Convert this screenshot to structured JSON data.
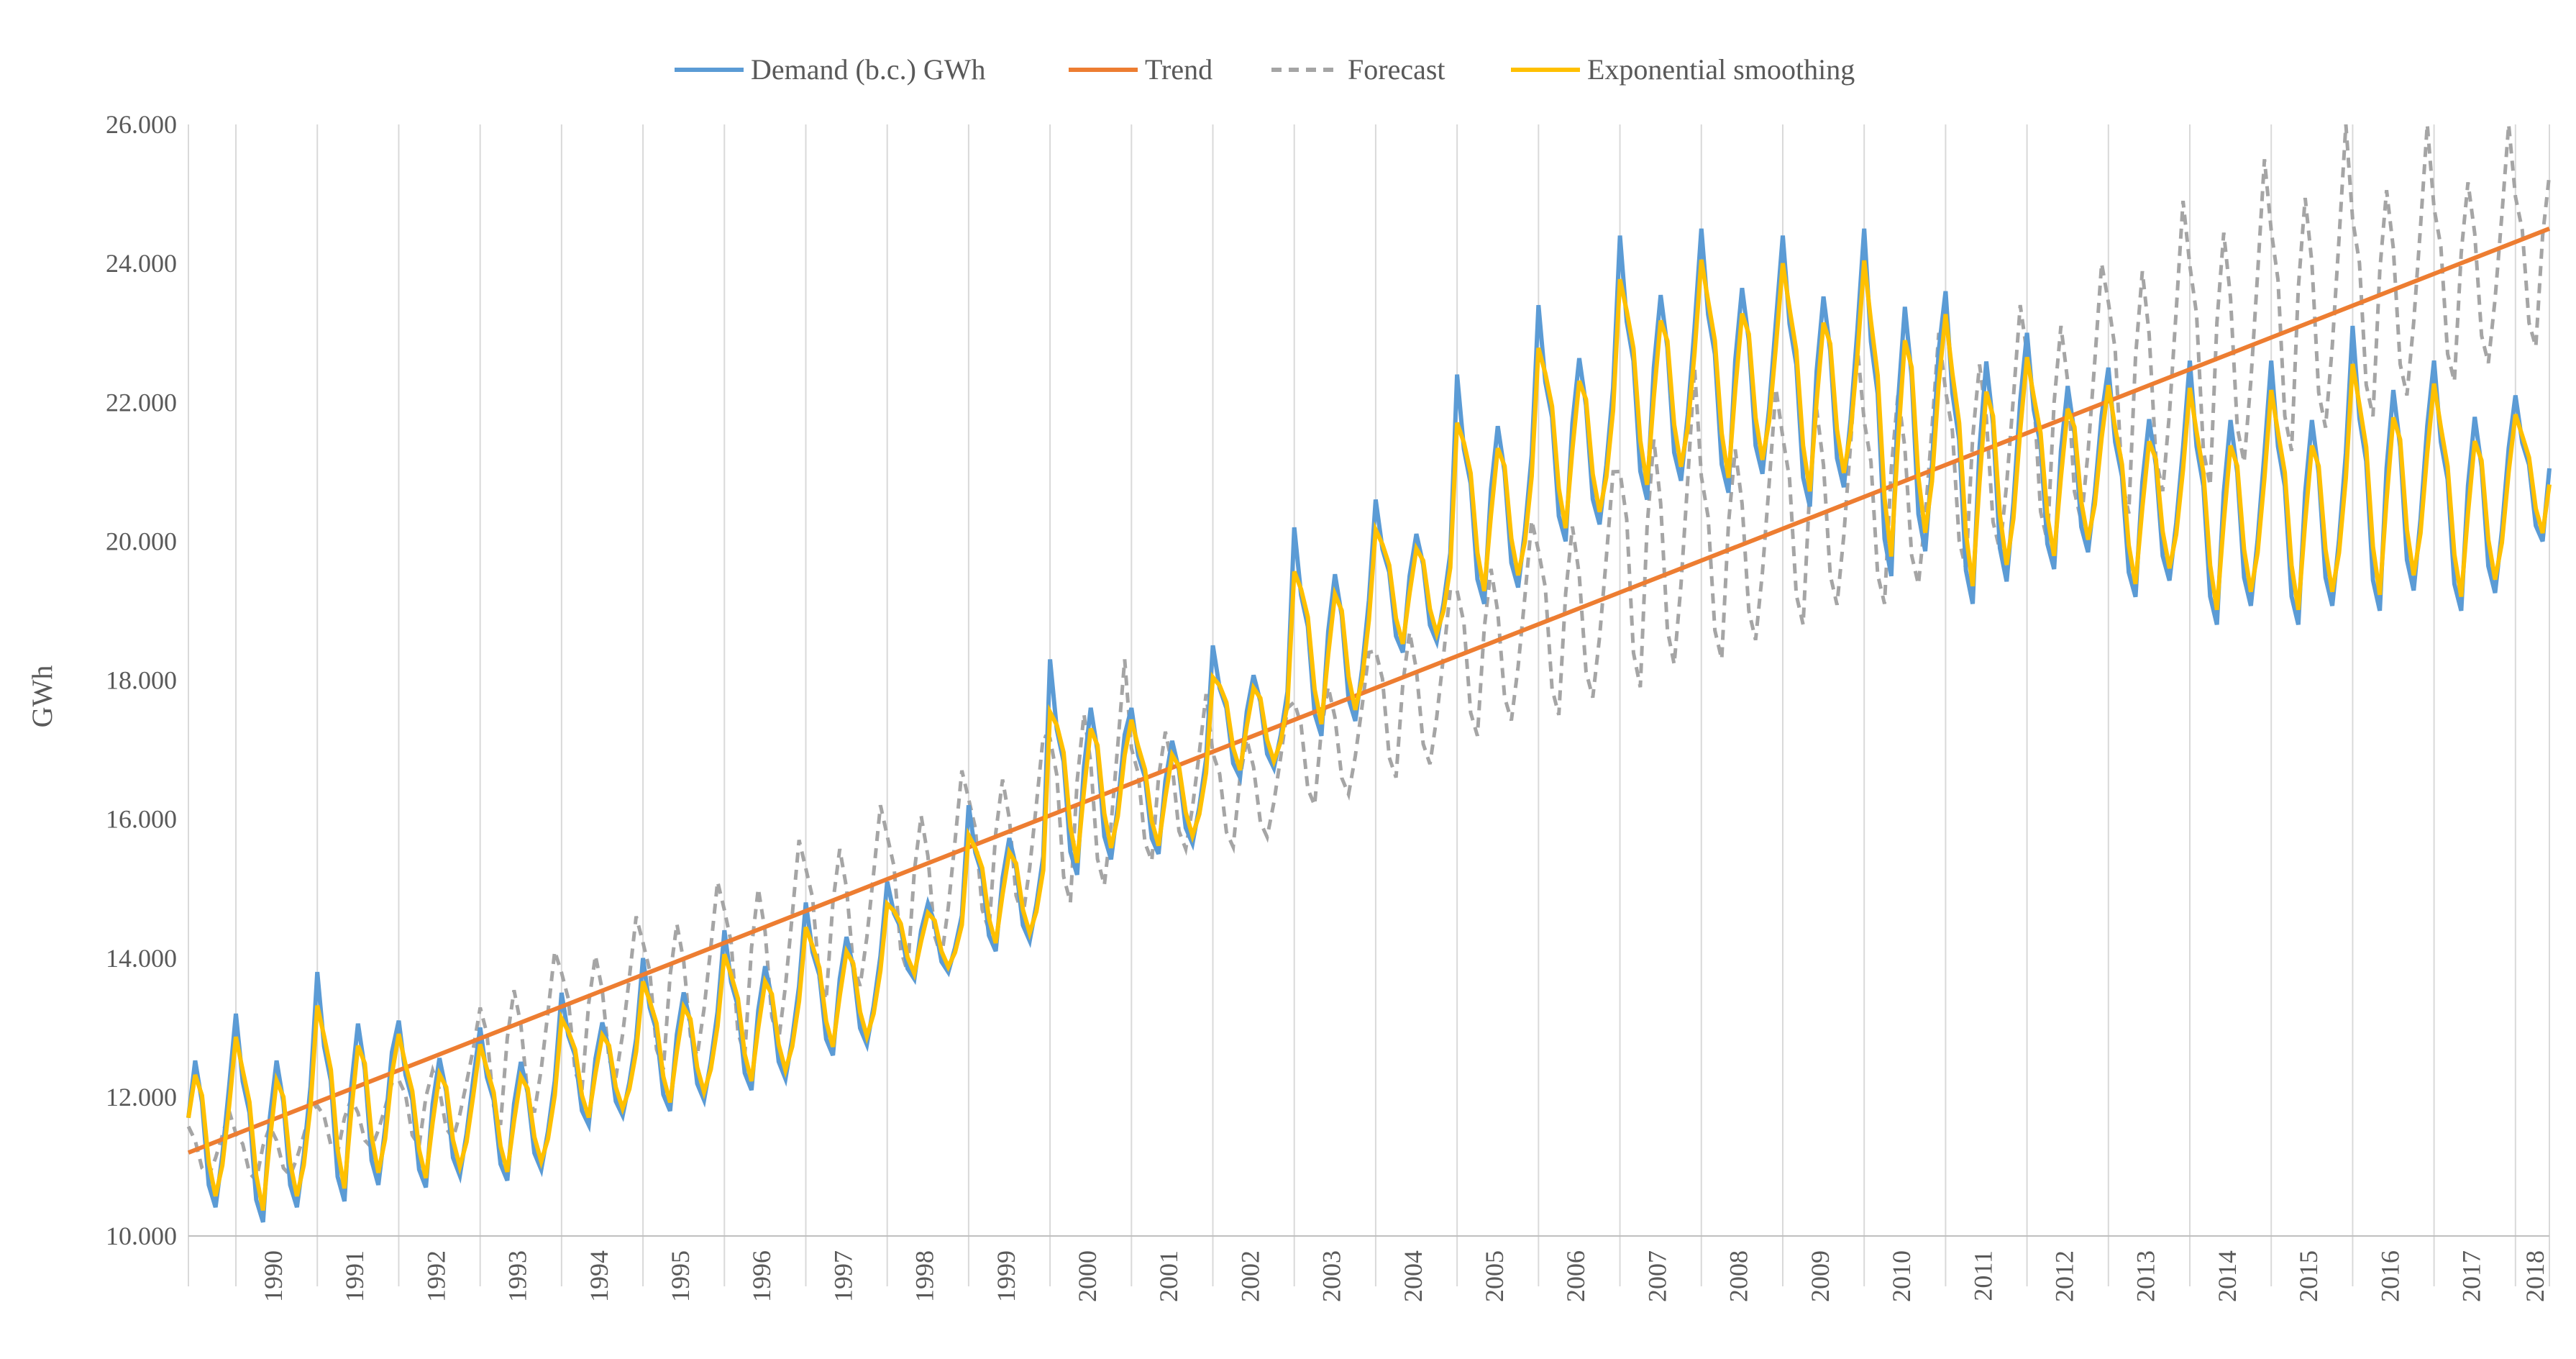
{
  "chart_data": {
    "type": "line",
    "title": "",
    "xlabel": "",
    "ylabel": "GWh",
    "ylim": [
      10000,
      26000
    ],
    "y_ticks": [
      10000,
      12000,
      14000,
      16000,
      18000,
      20000,
      22000,
      24000,
      26000
    ],
    "y_tick_labels": [
      "10.000",
      "12.000",
      "14.000",
      "16.000",
      "18.000",
      "20.000",
      "22.000",
      "24.000",
      "26.000"
    ],
    "x_ticks": [
      "1990",
      "1991",
      "1992",
      "1993",
      "1994",
      "1995",
      "1996",
      "1997",
      "1998",
      "1999",
      "2000",
      "2001",
      "2002",
      "2003",
      "2004",
      "2005",
      "2006",
      "2007",
      "2008",
      "2009",
      "2010",
      "2011",
      "2012",
      "2013",
      "2014",
      "2015",
      "2016",
      "2017",
      "2018"
    ],
    "x_range": [
      "1989-06",
      "2018-06"
    ],
    "grid": "vertical",
    "legend_position": "top",
    "series": [
      {
        "name": "Demand (b.c.) GWh",
        "color": "#5B9BD5",
        "style": "solid"
      },
      {
        "name": "Trend",
        "color": "#ED7D31",
        "style": "solid"
      },
      {
        "name": "Forecast",
        "color": "#A5A5A5",
        "style": "dashed"
      },
      {
        "name": "Exponential smoothing",
        "color": "#FFC000",
        "style": "solid"
      }
    ],
    "annual_mean_demand": [
      11200,
      11900,
      11700,
      11900,
      12400,
      12700,
      13000,
      13400,
      14100,
      15300,
      16100,
      16600,
      17700,
      19000,
      19600,
      20800,
      21600,
      22200,
      21800,
      21100,
      21300,
      20900,
      20900,
      20400,
      20300,
      20700,
      20900,
      21100,
      21400
    ],
    "demand_seasonal_peaks": [
      13200,
      13800,
      13100,
      13000,
      13500,
      14000,
      14400,
      14800,
      15100,
      16200,
      18300,
      17600,
      18500,
      20200,
      20600,
      22400,
      23400,
      24400,
      24500,
      24400,
      24500,
      23600,
      23000,
      22500,
      22600,
      22600,
      23100,
      22600,
      22100
    ],
    "demand_seasonal_lows": [
      10200,
      10500,
      10700,
      10800,
      11600,
      11800,
      12100,
      12600,
      13700,
      14100,
      15200,
      15500,
      16600,
      17200,
      18400,
      19100,
      20000,
      20600,
      20700,
      20500,
      19500,
      19100,
      19600,
      19200,
      18800,
      18800,
      19000,
      19000,
      20000
    ],
    "trend_endpoints": {
      "start": [
        "1989-06",
        11200
      ],
      "end": [
        "2018-06",
        24500
      ]
    },
    "forecast_seasonal_peaks": [
      11800,
      12200,
      12700,
      14100,
      14600,
      15100,
      15700,
      16200,
      16700,
      17200,
      18300,
      17800,
      17600,
      18400,
      19300,
      20300,
      21000,
      22500,
      22200,
      22800,
      23000,
      23400,
      24000,
      24900,
      25500,
      26100,
      26100,
      26100,
      26100
    ],
    "forecast_seasonal_lows": [
      10800,
      11200,
      11300,
      11600,
      12100,
      12400,
      12600,
      13400,
      13800,
      14400,
      14800,
      15400,
      15600,
      16200,
      16600,
      17200,
      17500,
      17900,
      18300,
      18800,
      19100,
      19600,
      20000,
      20400,
      20800,
      21300,
      21800,
      22300,
      22800
    ]
  },
  "legend": {
    "items": [
      "Demand (b.c.) GWh",
      "Trend",
      "Forecast",
      "Exponential smoothing"
    ]
  },
  "axis": {
    "y_title": "GWh"
  }
}
